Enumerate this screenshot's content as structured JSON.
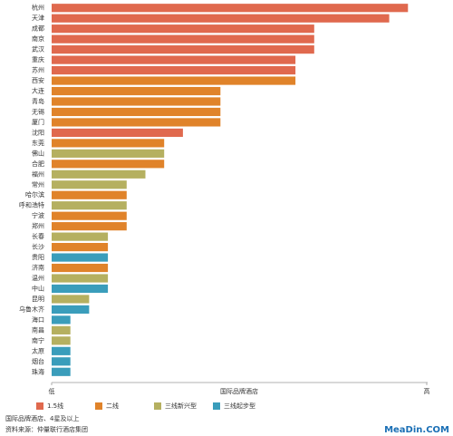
{
  "chart_data": {
    "type": "barh",
    "categories": [
      "杭州",
      "天津",
      "成都",
      "南京",
      "武汉",
      "重庆",
      "苏州",
      "西安",
      "大连",
      "青岛",
      "无锡",
      "厦门",
      "沈阳",
      "东莞",
      "佛山",
      "合肥",
      "福州",
      "常州",
      "哈尔滨",
      "呼和浩特",
      "宁波",
      "郑州",
      "长春",
      "长沙",
      "贵阳",
      "济南",
      "温州",
      "中山",
      "昆明",
      "乌鲁木齐",
      "海口",
      "南昌",
      "南宁",
      "太原",
      "烟台",
      "珠海"
    ],
    "series": [
      {
        "name": "1.5线",
        "color": "#e0694e",
        "values": [
          19,
          18,
          14,
          14,
          14,
          13,
          13,
          null,
          null,
          null,
          null,
          null,
          7,
          null,
          null,
          null,
          null,
          null,
          null,
          null,
          null,
          null,
          null,
          null,
          null,
          null,
          null,
          null,
          null,
          null,
          null,
          null,
          null,
          null,
          null,
          null
        ]
      },
      {
        "name": "二线",
        "color": "#e0832a",
        "values": [
          null,
          null,
          null,
          null,
          null,
          null,
          null,
          13,
          9,
          9,
          9,
          9,
          null,
          6,
          null,
          6,
          null,
          null,
          4,
          null,
          4,
          4,
          null,
          3,
          null,
          3,
          null,
          null,
          null,
          null,
          null,
          null,
          null,
          null,
          null,
          null
        ]
      },
      {
        "name": "三线新兴型",
        "color": "#b5b060",
        "values": [
          null,
          null,
          null,
          null,
          null,
          null,
          null,
          null,
          null,
          null,
          null,
          null,
          null,
          null,
          6,
          null,
          5,
          4,
          null,
          4,
          null,
          null,
          3,
          null,
          null,
          null,
          3,
          null,
          2,
          null,
          null,
          1,
          1,
          null,
          null,
          null
        ]
      },
      {
        "name": "三线起步型",
        "color": "#3a9dbb",
        "values": [
          null,
          null,
          null,
          null,
          null,
          null,
          null,
          null,
          null,
          null,
          null,
          null,
          null,
          null,
          null,
          null,
          null,
          null,
          null,
          null,
          null,
          null,
          null,
          null,
          3,
          null,
          null,
          3,
          null,
          2,
          1,
          null,
          null,
          1,
          1,
          1
        ]
      }
    ],
    "xlabel": "国际品牌酒店",
    "xlim": [
      0,
      20
    ],
    "xticks": [
      {
        "value": 0,
        "label": "低"
      },
      {
        "value": 20,
        "label": "高"
      }
    ],
    "notes": [
      "国际品牌酒店、4星及以上",
      "资料来源：仲量联行酒店集团"
    ],
    "watermark": "MeaDin.COM"
  }
}
